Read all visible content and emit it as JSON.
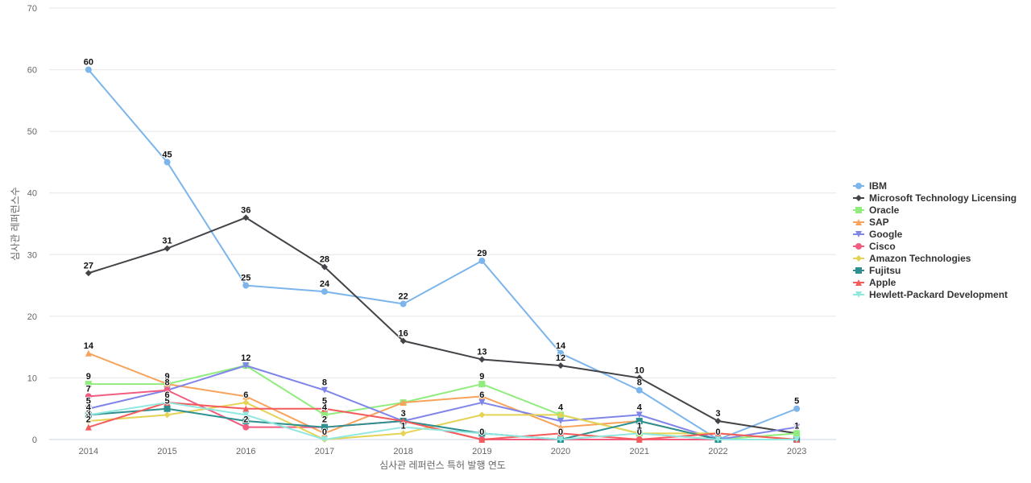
{
  "chart_data": {
    "type": "line",
    "title": "",
    "xlabel": "심사관 레퍼런스 특허 발행 연도",
    "ylabel": "심사관 레퍼런스수",
    "ylim": [
      0,
      70
    ],
    "yticks": [
      0,
      10,
      20,
      30,
      40,
      50,
      60,
      70
    ],
    "grid": true,
    "legend_position": "right",
    "categories": [
      "2014",
      "2015",
      "2016",
      "2017",
      "2018",
      "2019",
      "2020",
      "2021",
      "2022",
      "2023"
    ],
    "series": [
      {
        "name": "IBM",
        "color": "#7cb5ec",
        "marker": "circle",
        "values": [
          60,
          45,
          25,
          24,
          22,
          29,
          14,
          8,
          0,
          5
        ]
      },
      {
        "name": "Microsoft Technology Licensing",
        "color": "#434348",
        "marker": "diamond",
        "values": [
          27,
          31,
          36,
          28,
          16,
          13,
          12,
          10,
          3,
          1
        ]
      },
      {
        "name": "Oracle",
        "color": "#90ed7d",
        "marker": "square",
        "values": [
          9,
          9,
          12,
          4,
          6,
          9,
          4,
          1,
          0,
          1
        ]
      },
      {
        "name": "SAP",
        "color": "#f7a35c",
        "marker": "triangle",
        "values": [
          14,
          9,
          7,
          1,
          6,
          7,
          2,
          3,
          0,
          0
        ]
      },
      {
        "name": "Google",
        "color": "#8085e9",
        "marker": "triangle-down",
        "values": [
          5,
          8,
          12,
          8,
          3,
          6,
          3,
          4,
          0,
          2
        ]
      },
      {
        "name": "Cisco",
        "color": "#f15c80",
        "marker": "circle",
        "values": [
          7,
          8,
          2,
          2,
          3,
          0,
          0,
          0,
          0,
          0
        ]
      },
      {
        "name": "Amazon Technologies",
        "color": "#e4d354",
        "marker": "diamond",
        "values": [
          3,
          4,
          6,
          0,
          1,
          4,
          4,
          1,
          1,
          0
        ]
      },
      {
        "name": "Fujitsu",
        "color": "#2b908f",
        "marker": "square",
        "values": [
          4,
          5,
          3,
          2,
          3,
          1,
          0,
          3,
          0,
          0
        ]
      },
      {
        "name": "Apple",
        "color": "#f45b5b",
        "marker": "triangle",
        "values": [
          2,
          6,
          5,
          5,
          3,
          0,
          1,
          0,
          1,
          0
        ]
      },
      {
        "name": "Hewlett-Packard Development",
        "color": "#91e8e1",
        "marker": "triangle-down",
        "values": [
          4,
          6,
          4,
          0,
          2,
          1,
          0,
          1,
          0,
          0
        ]
      }
    ],
    "data_labels_shown": [
      {
        "series": "IBM",
        "indices": [
          0,
          1,
          2,
          3,
          4,
          5,
          6,
          7,
          9
        ]
      },
      {
        "series": "Microsoft Technology Licensing",
        "indices": [
          0,
          1,
          2,
          3,
          4,
          5,
          6,
          7,
          8,
          9
        ]
      },
      {
        "series": "Oracle",
        "indices": [
          0,
          1,
          3,
          5,
          6
        ]
      },
      {
        "series": "SAP",
        "indices": [
          0
        ]
      },
      {
        "series": "Google",
        "indices": [
          0,
          2,
          3,
          5,
          7
        ]
      },
      {
        "series": "Cisco",
        "indices": [
          0,
          1,
          2,
          3,
          4,
          5,
          6,
          7,
          8
        ]
      },
      {
        "series": "Amazon Technologies",
        "indices": [
          0,
          2,
          4,
          7
        ]
      },
      {
        "series": "Fujitsu",
        "indices": [
          0,
          1,
          3
        ]
      },
      {
        "series": "Apple",
        "indices": [
          0,
          1,
          3
        ]
      },
      {
        "series": "Hewlett-Packard Development",
        "indices": [
          0,
          1,
          3
        ]
      }
    ]
  }
}
